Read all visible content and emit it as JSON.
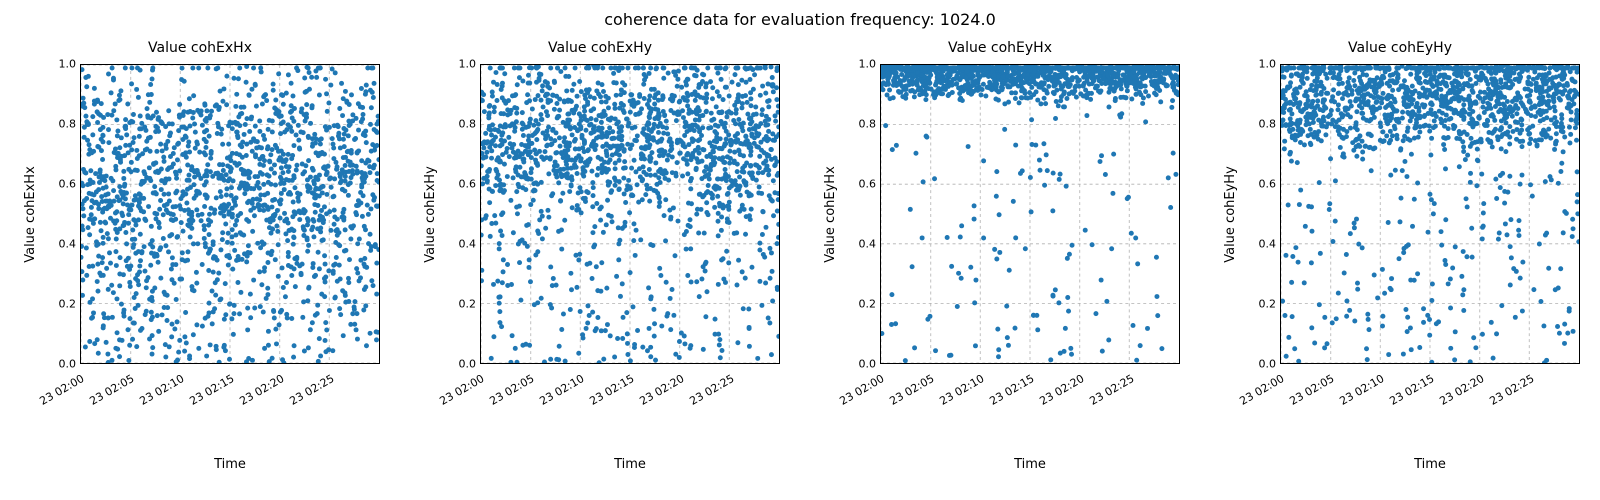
{
  "suptitle": "coherence data for evaluation frequency: 1024.0",
  "xlabel": "Time",
  "marker_color": "#1f77b4",
  "marker_radius": 2.5,
  "grid_color": "#b0b0b0",
  "background_color": "#ffffff",
  "ylim": [
    0.0,
    1.0
  ],
  "yticks": [
    0.0,
    0.2,
    0.4,
    0.6,
    0.8,
    1.0
  ],
  "xtick_labels": [
    "23 02:00",
    "23 02:05",
    "23 02:10",
    "23 02:15",
    "23 02:20",
    "23 02:25"
  ],
  "xtick_positions": [
    0.0,
    0.167,
    0.333,
    0.5,
    0.667,
    0.833
  ],
  "title_fontsize": 16,
  "subtitle_fontsize": 14,
  "label_fontsize": 13,
  "tick_fontsize": 11,
  "panels": [
    {
      "title": "Value cohExHx",
      "ylabel": "Value cohExHx",
      "density_params": {
        "n": 1600,
        "base": 0.65,
        "spread": 0.48,
        "low_tail": 0.35
      }
    },
    {
      "title": "Value cohExHy",
      "ylabel": "Value cohExHy",
      "density_params": {
        "n": 1600,
        "base": 0.75,
        "spread": 0.38,
        "low_tail": 0.22
      }
    },
    {
      "title": "Value cohEyHx",
      "ylabel": "Value cohEyHx",
      "density_params": {
        "n": 1600,
        "base": 0.96,
        "spread": 0.1,
        "low_tail": 0.08
      }
    },
    {
      "title": "Value cohEyHy",
      "ylabel": "Value cohEyHy",
      "density_params": {
        "n": 1600,
        "base": 0.88,
        "spread": 0.25,
        "low_tail": 0.18
      }
    }
  ]
}
